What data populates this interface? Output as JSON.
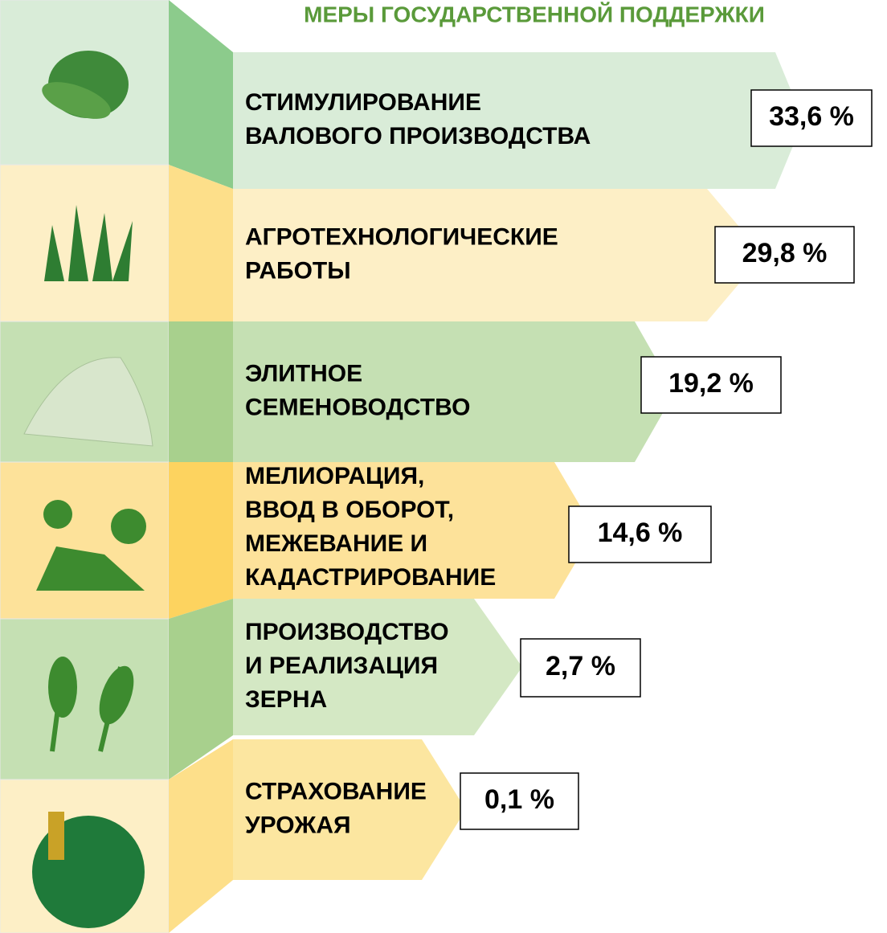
{
  "title": "МЕРЫ ГОСУДАРСТВЕННОЙ ПОДДЕРЖКИ",
  "items": [
    {
      "lines": [
        "СТИМУЛИРОВАНИЕ",
        "ВАЛОВОГО ПРОИЗВОДСТВА"
      ],
      "value": "33,6 %"
    },
    {
      "lines": [
        "АГРОТЕХНОЛОГИЧЕСКИЕ",
        "РАБОТЫ"
      ],
      "value": "29,8 %"
    },
    {
      "lines": [
        "ЭЛИТНОЕ",
        "СЕМЕНОВОДСТВО"
      ],
      "value": "19,2 %"
    },
    {
      "lines": [
        "МЕЛИОРАЦИЯ,",
        "ВВОД В ОБОРОТ,",
        "МЕЖЕВАНИЕ И",
        "КАДАСТРИРОВАНИЕ"
      ],
      "value": "14,6 %"
    },
    {
      "lines": [
        "ПРОИЗВОДСТВО",
        "И РЕАЛИЗАЦИЯ",
        "ЗЕРНА"
      ],
      "value": "2,7 %"
    },
    {
      "lines": [
        "СТРАХОВАНИЕ",
        "УРОЖАЯ"
      ],
      "value": "0,1 %"
    }
  ]
}
